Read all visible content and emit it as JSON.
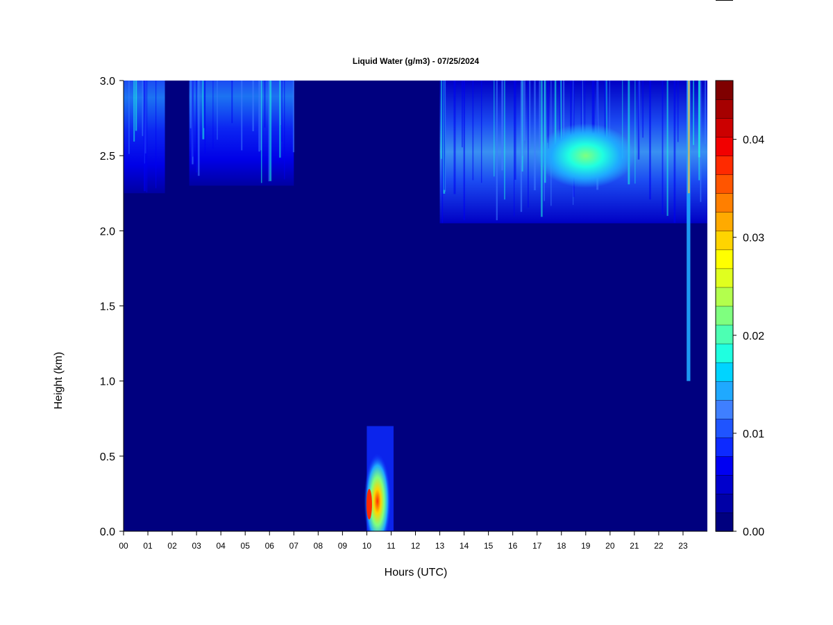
{
  "chart_data": {
    "type": "heatmap",
    "title": "Liquid Water (g/m3) - 07/25/2024",
    "xlabel": "Hours (UTC)",
    "ylabel": "Height (km)",
    "xlim": [
      0,
      24
    ],
    "ylim": [
      0,
      3.0
    ],
    "x_ticks": [
      "00",
      "01",
      "02",
      "03",
      "04",
      "05",
      "06",
      "07",
      "08",
      "09",
      "10",
      "11",
      "12",
      "13",
      "14",
      "15",
      "16",
      "17",
      "18",
      "19",
      "20",
      "21",
      "22",
      "23"
    ],
    "y_ticks": [
      "0.0",
      "0.5",
      "1.0",
      "1.5",
      "2.0",
      "2.5",
      "3.0"
    ],
    "colorbar": {
      "min": 0.0,
      "max": 0.046,
      "ticks": [
        "0.00",
        "0.01",
        "0.02",
        "0.03",
        "0.04"
      ],
      "colors": [
        "#00007F",
        "#0000A6",
        "#0000CC",
        "#0000F2",
        "#0D2AFF",
        "#1F54FF",
        "#3F7FFF",
        "#1FA9FF",
        "#00D4FF",
        "#1FFFE0",
        "#4DFFB3",
        "#7FFF7F",
        "#B3FF4D",
        "#E0FF1F",
        "#FFFF00",
        "#FFD400",
        "#FFAA00",
        "#FF7F00",
        "#FF5500",
        "#FF2A00",
        "#F20000",
        "#CC0000",
        "#A60000",
        "#7F0000"
      ]
    },
    "features": [
      {
        "region": "upper cloud layer 00-01.7 UTC",
        "x": [
          0.0,
          1.7
        ],
        "y": [
          2.25,
          3.0
        ],
        "peak_value": 0.015
      },
      {
        "region": "upper cloud streaks 02-07 UTC",
        "x": [
          2.7,
          7.0
        ],
        "y": [
          2.3,
          3.0
        ],
        "peak_value": 0.012
      },
      {
        "region": "upper cloud layer 13-24 UTC",
        "x": [
          13.0,
          24.0
        ],
        "y": [
          2.05,
          3.0
        ],
        "peak_value": 0.022
      },
      {
        "region": "cloud core 17-21 UTC",
        "x": [
          17.0,
          21.0
        ],
        "y": [
          2.35,
          2.65
        ],
        "peak_value": 0.022
      },
      {
        "region": "low-level liquid 10-11 UTC",
        "x": [
          10.0,
          11.1
        ],
        "y": [
          0.0,
          0.7
        ],
        "peak_value": 0.034
      },
      {
        "region": "vertical streak near 23.2 UTC",
        "x": [
          23.15,
          23.3
        ],
        "y": [
          1.0,
          3.0
        ],
        "peak_value": 0.02
      }
    ]
  }
}
